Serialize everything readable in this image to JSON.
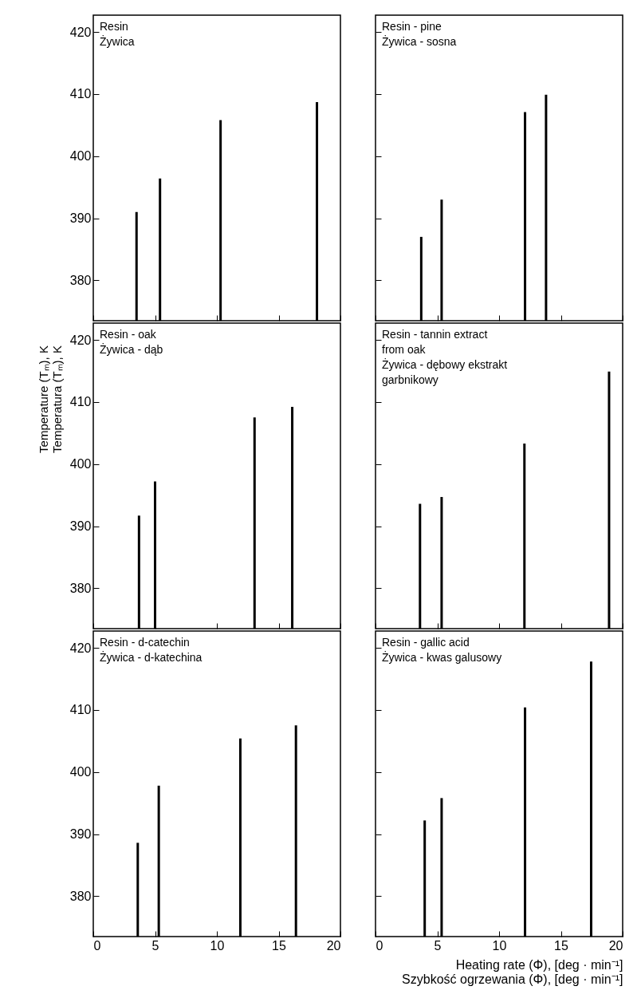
{
  "chart_data": [
    {
      "type": "bar",
      "title": "Resin\nŻywica",
      "x": [
        3.5,
        5.4,
        10.3,
        18.1
      ],
      "values": [
        391.0,
        396.4,
        405.8,
        408.7
      ],
      "color": "#000000",
      "xlim": [
        0,
        20
      ],
      "xticks": [
        0,
        5,
        10,
        15,
        20
      ],
      "ylim": [
        373.5,
        422.7
      ],
      "yticks": [
        380,
        390,
        400,
        410,
        420
      ],
      "tick_labels": "y"
    },
    {
      "type": "bar",
      "title": "Resin - pine\nŻywica - sosna",
      "x": [
        3.7,
        5.35,
        12.1,
        13.8
      ],
      "values": [
        387.0,
        393.0,
        407.1,
        409.9
      ],
      "color": "#000000",
      "xlim": [
        0,
        20
      ],
      "xticks": [
        0,
        5,
        10,
        15,
        20
      ],
      "ylim": [
        373.5,
        422.7
      ],
      "yticks": [
        380,
        390,
        400,
        410,
        420
      ],
      "tick_labels": false
    },
    {
      "type": "bar",
      "title": "Resin - oak\nŻywica - dąb",
      "ylabel": "Temperature (Tₘ), K\nTemperatura (Tₘ), K",
      "x": [
        3.7,
        5.0,
        13.05,
        16.1
      ],
      "values": [
        391.7,
        397.2,
        407.5,
        409.2
      ],
      "color": "#000000",
      "xlim": [
        0,
        20
      ],
      "xticks": [
        0,
        5,
        10,
        15,
        20
      ],
      "ylim": [
        373.5,
        422.7
      ],
      "yticks": [
        380,
        390,
        400,
        410,
        420
      ],
      "tick_labels": "y"
    },
    {
      "type": "bar",
      "title": "Resin - tannin extract\nfrom oak\nŻywica - dębowy ekstrakt\ngarbnikowy",
      "x": [
        3.6,
        5.35,
        12.05,
        18.9
      ],
      "values": [
        393.6,
        394.7,
        403.3,
        414.9
      ],
      "color": "#000000",
      "xlim": [
        0,
        20
      ],
      "xticks": [
        0,
        5,
        10,
        15,
        20
      ],
      "ylim": [
        373.5,
        422.7
      ],
      "yticks": [
        380,
        390,
        400,
        410,
        420
      ],
      "tick_labels": false
    },
    {
      "type": "bar",
      "title": "Resin - d-catechin\nŻywica - d-katechina",
      "x": [
        3.6,
        5.3,
        11.9,
        16.4
      ],
      "values": [
        388.6,
        397.8,
        405.4,
        407.5
      ],
      "color": "#000000",
      "xlim": [
        0,
        20
      ],
      "xticks": [
        0,
        5,
        10,
        15,
        20
      ],
      "ylim": [
        373.5,
        422.7
      ],
      "yticks": [
        380,
        390,
        400,
        410,
        420
      ]
    },
    {
      "type": "bar",
      "title": "Resin - gallic acid\nŻywica - kwas galusowy",
      "xlabel": "Heating rate (Φ), [deg · min⁻¹]\nSzybkość ogrzewania (Φ), [deg · min⁻¹]",
      "x": [
        3.98,
        5.35,
        12.1,
        17.45
      ],
      "values": [
        392.2,
        395.8,
        410.4,
        417.8
      ],
      "color": "#000000",
      "xlim": [
        0,
        20
      ],
      "xticks": [
        0,
        5,
        10,
        15,
        20
      ],
      "ylim": [
        373.5,
        422.7
      ],
      "yticks": [
        380,
        390,
        400,
        410,
        420
      ],
      "tick_labels": "x"
    }
  ]
}
